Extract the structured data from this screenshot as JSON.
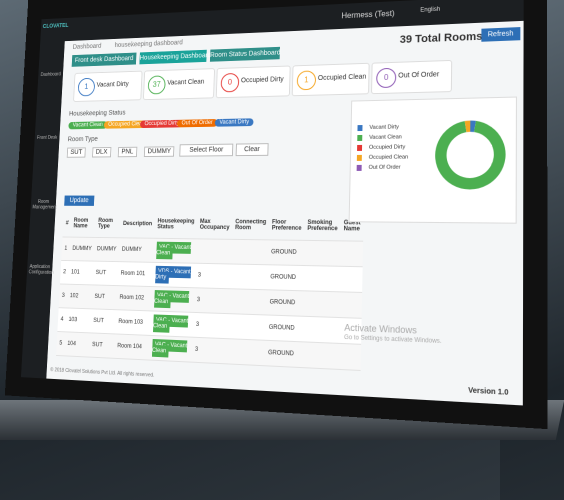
{
  "logo": "CLOVATEL",
  "header": {
    "hotel": "Hermess (Test)",
    "language": "English",
    "total_rooms": "39 Total Rooms",
    "refresh": "Refresh"
  },
  "breadcrumb": [
    "Dashboard",
    "housekeeping dashboard"
  ],
  "tabs": [
    "Front desk Dashboard",
    "Housekeeping Dashboard",
    "Room Status Dashboard"
  ],
  "status_cards": [
    {
      "count": 1,
      "label": "Vacant Dirty",
      "color": "#3a78c2"
    },
    {
      "count": 37,
      "label": "Vacant Clean",
      "color": "#4caf50"
    },
    {
      "count": 0,
      "label": "Occupied Dirty",
      "color": "#e53935"
    },
    {
      "count": 1,
      "label": "Occupied Clean",
      "color": "#f5a623"
    },
    {
      "count": 0,
      "label": "Out Of Order",
      "color": "#8e5bb5"
    }
  ],
  "filters": {
    "status_label": "Housekeeping Status",
    "status_chips": [
      {
        "label": "Vacant Clean",
        "color": "#4caf50"
      },
      {
        "label": "Occupied Clean",
        "color": "#f5a623"
      },
      {
        "label": "Occupied Dirty",
        "color": "#e53935"
      },
      {
        "label": "Out Of Order",
        "color": "#ef6c00"
      },
      {
        "label": "Vacant Dirty",
        "color": "#3a78c2"
      }
    ],
    "room_type_label": "Room Type",
    "room_types": [
      "SUT",
      "DLX",
      "PNL",
      "DUMMY"
    ],
    "floor_placeholder": "Select Floor",
    "clear": "Clear"
  },
  "update": "Update",
  "table": {
    "headers": [
      "#",
      "Room Name",
      "Room Type",
      "Description",
      "Housekeeping Status",
      "Max Occupancy",
      "Connecting Room",
      "Floor Preference",
      "Smoking Preference",
      "Guest Name"
    ],
    "rows": [
      [
        "1",
        "DUMMY",
        "DUMMY",
        "DUMMY",
        "VAC - Vacant Clean",
        "",
        "",
        "GROUND",
        "",
        ""
      ],
      [
        "2",
        "101",
        "SUT",
        "Room 101",
        "VDS - Vacant Dirty",
        "3",
        "",
        "GROUND",
        "",
        ""
      ],
      [
        "3",
        "102",
        "SUT",
        "Room 102",
        "VAC - Vacant Clean",
        "3",
        "",
        "GROUND",
        "",
        ""
      ],
      [
        "4",
        "103",
        "SUT",
        "Room 103",
        "VAC - Vacant Clean",
        "3",
        "",
        "GROUND",
        "",
        ""
      ],
      [
        "5",
        "104",
        "SUT",
        "Room 104",
        "VAC - Vacant Clean",
        "3",
        "",
        "GROUND",
        "",
        ""
      ]
    ]
  },
  "sidebar": [
    "Dashboard",
    "Front Desk",
    "Room Management",
    "Application Configuration"
  ],
  "footer": {
    "copyright": "© 2018 Clovatel Solutions Pvt Ltd. All rights reserved.",
    "version": "Version 1.0"
  },
  "watermark": {
    "title": "Activate Windows",
    "subtitle": "Go to Settings to activate Windows."
  }
}
